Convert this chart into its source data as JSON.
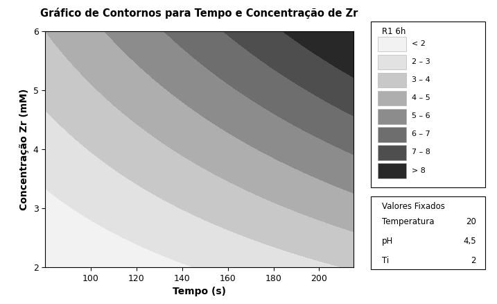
{
  "title": "Gráfico de Contornos para Tempo e Concentração de Zr",
  "xlabel": "Tempo (s)",
  "ylabel": "Concentração Zr (mM)",
  "x_min": 80,
  "x_max": 215,
  "y_min": 2,
  "y_max": 6,
  "x_ticks": [
    100,
    120,
    140,
    160,
    180,
    200
  ],
  "y_ticks": [
    2,
    3,
    4,
    5,
    6
  ],
  "levels": [
    0,
    2,
    3,
    4,
    5,
    6,
    7,
    8,
    12
  ],
  "colors": [
    "#f2f2f2",
    "#e2e2e2",
    "#c8c8c8",
    "#aeaeae",
    "#8c8c8c",
    "#6e6e6e",
    "#4e4e4e",
    "#282828"
  ],
  "legend_title": "R1 6h",
  "legend_labels": [
    "< 2",
    "2 – 3",
    "3 – 4",
    "4 – 5",
    "5 – 6",
    "6 – 7",
    "7 – 8",
    "> 8"
  ],
  "fixed_title": "Valores Fixados",
  "fixed_vars": [
    [
      "Temperatura",
      "20"
    ],
    [
      "pH",
      "4,5"
    ],
    [
      "Ti",
      "2"
    ]
  ],
  "background_color": "#ffffff",
  "a_coef": 0.00384,
  "b_coef": 0.288,
  "c_coef": 0.00577,
  "d_coef": -0.806
}
